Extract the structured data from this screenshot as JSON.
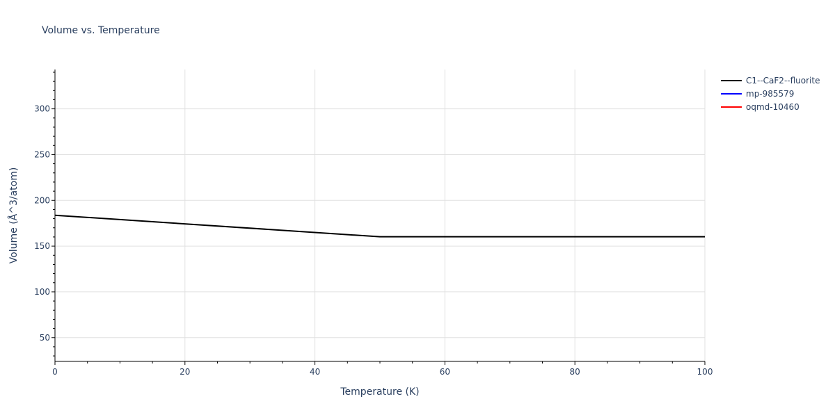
{
  "chart_data": {
    "type": "line",
    "title": "Volume vs. Temperature",
    "xlabel": "Temperature (K)",
    "ylabel": "Volume (Å^3/atom)",
    "xlim": [
      0,
      100
    ],
    "ylim": [
      24,
      343
    ],
    "x_ticks": [
      0,
      20,
      40,
      60,
      80,
      100
    ],
    "y_ticks": [
      50,
      100,
      150,
      200,
      250,
      300
    ],
    "grid": true,
    "legend_position": "top-right outside",
    "series": [
      {
        "name": "C1--CaF2--fluorite",
        "color": "#000000",
        "x": [
          0,
          50,
          100
        ],
        "y": [
          183.7,
          160.2,
          160.2
        ]
      },
      {
        "name": "mp-985579",
        "color": "#0000ff",
        "x": [],
        "y": []
      },
      {
        "name": "oqmd-10460",
        "color": "#ff0000",
        "x": [],
        "y": []
      }
    ]
  },
  "legend": {
    "items": [
      {
        "label": "C1--CaF2--fluorite",
        "color": "#000000"
      },
      {
        "label": "mp-985579",
        "color": "#0000ff"
      },
      {
        "label": "oqmd-10460",
        "color": "#ff0000"
      }
    ]
  }
}
